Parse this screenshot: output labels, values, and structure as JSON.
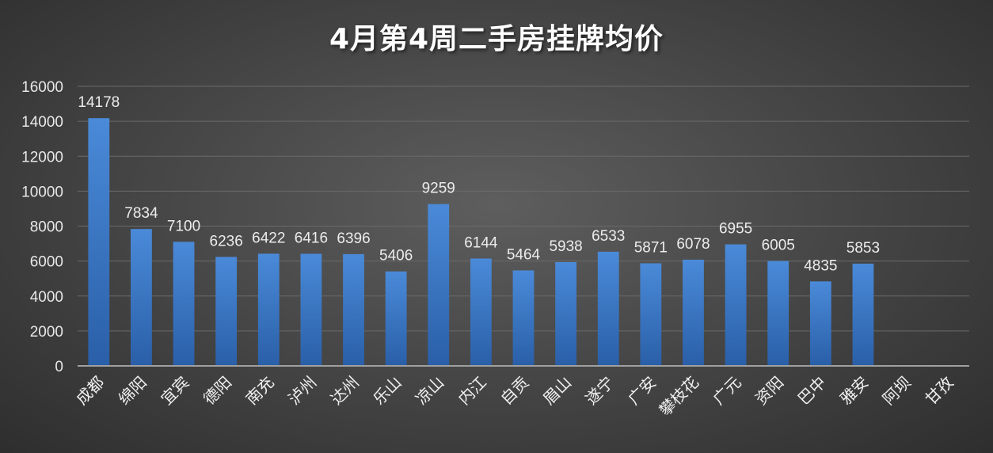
{
  "chart_data": {
    "type": "bar",
    "title": "4月第4周二手房挂牌均价",
    "categories": [
      "成都",
      "绵阳",
      "宜宾",
      "德阳",
      "南充",
      "泸州",
      "达州",
      "乐山",
      "凉山",
      "内江",
      "自贡",
      "眉山",
      "遂宁",
      "广安",
      "攀枝花",
      "广元",
      "资阳",
      "巴中",
      "雅安",
      "阿坝",
      "甘孜"
    ],
    "values": [
      14178,
      7834,
      7100,
      6236,
      6422,
      6416,
      6396,
      5406,
      9259,
      6144,
      5464,
      5938,
      6533,
      5871,
      6078,
      6955,
      6005,
      4835,
      5853,
      null,
      null
    ],
    "data_labels": [
      "14178",
      "7834",
      "7100",
      "6236",
      "6422",
      "6416",
      "6396",
      "5406",
      "9259",
      "6144",
      "5464",
      "5938",
      "6533",
      "5871",
      "6078",
      "6955",
      "6005",
      "4835",
      "5853",
      "",
      ""
    ],
    "y_ticks": [
      "0",
      "2000",
      "4000",
      "6000",
      "8000",
      "10000",
      "12000",
      "14000",
      "16000"
    ],
    "ylim": [
      0,
      16000
    ],
    "xlabel": "",
    "ylabel": "",
    "grid": true,
    "legend": "none",
    "bar_color": "#3a79c6",
    "bar_color_light": "#4a8ad8",
    "bar_color_dark": "#2a5fa8",
    "grid_color": "#6a6a6a",
    "axis_color": "#a0a0a0"
  }
}
